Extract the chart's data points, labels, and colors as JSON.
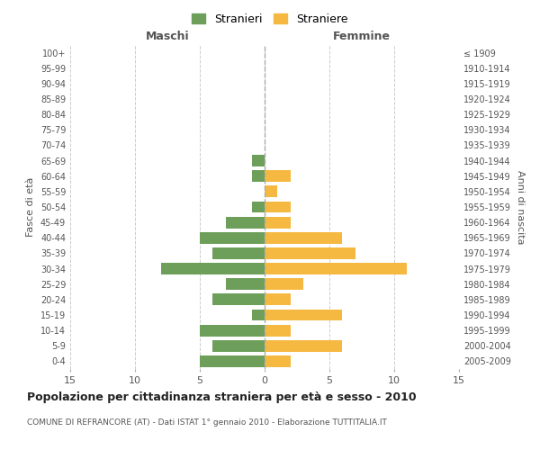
{
  "age_groups": [
    "0-4",
    "5-9",
    "10-14",
    "15-19",
    "20-24",
    "25-29",
    "30-34",
    "35-39",
    "40-44",
    "45-49",
    "50-54",
    "55-59",
    "60-64",
    "65-69",
    "70-74",
    "75-79",
    "80-84",
    "85-89",
    "90-94",
    "95-99",
    "100+"
  ],
  "birth_years": [
    "2005-2009",
    "2000-2004",
    "1995-1999",
    "1990-1994",
    "1985-1989",
    "1980-1984",
    "1975-1979",
    "1970-1974",
    "1965-1969",
    "1960-1964",
    "1955-1959",
    "1950-1954",
    "1945-1949",
    "1940-1944",
    "1935-1939",
    "1930-1934",
    "1925-1929",
    "1920-1924",
    "1915-1919",
    "1910-1914",
    "≤ 1909"
  ],
  "maschi": [
    5,
    4,
    5,
    1,
    4,
    3,
    8,
    4,
    5,
    3,
    1,
    0,
    1,
    1,
    0,
    0,
    0,
    0,
    0,
    0,
    0
  ],
  "femmine": [
    2,
    6,
    2,
    6,
    2,
    3,
    11,
    7,
    6,
    2,
    2,
    1,
    2,
    0,
    0,
    0,
    0,
    0,
    0,
    0,
    0
  ],
  "male_color": "#6d9f5b",
  "female_color": "#f5b942",
  "background_color": "#ffffff",
  "grid_color": "#cccccc",
  "title": "Popolazione per cittadinanza straniera per età e sesso - 2010",
  "subtitle": "COMUNE DI REFRANCORE (AT) - Dati ISTAT 1° gennaio 2010 - Elaborazione TUTTITALIA.IT",
  "xlabel_left": "Maschi",
  "xlabel_right": "Femmine",
  "ylabel_left": "Fasce di età",
  "ylabel_right": "Anni di nascita",
  "legend_male": "Stranieri",
  "legend_female": "Straniere",
  "xlim": 15
}
